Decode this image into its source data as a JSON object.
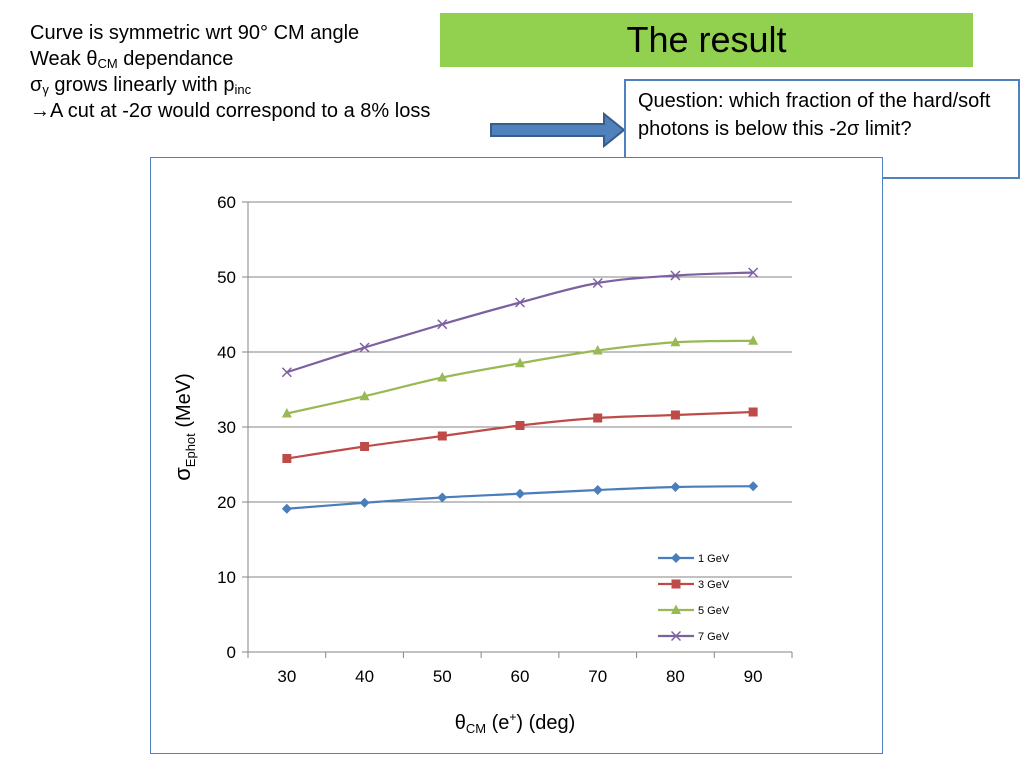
{
  "notes": {
    "line1": "Curve is symmetric wrt 90° CM angle",
    "line2_pre": "Weak ",
    "line2_theta": "θ",
    "line2_sub": "CM",
    "line2_post": " dependance",
    "line3_sigma": "σ",
    "line3_sub": "γ",
    "line3_post": " grows linearly with p",
    "line3_sub2": "inc",
    "line4_arrow": "→",
    "line4_text": "A cut at -2σ would correspond to a 8% loss"
  },
  "title": "The result",
  "question": "Question: which fraction of the hard/soft photons is below this -2σ limit?",
  "colors": {
    "title_bg": "#92d050",
    "arrow": "#4f81bd",
    "frame": "#4f81bd",
    "series": [
      "#4a7ebb",
      "#be4b48",
      "#98b954",
      "#7d60a0"
    ]
  },
  "chart_data": {
    "type": "line",
    "x": [
      30,
      40,
      50,
      60,
      70,
      80,
      90
    ],
    "xlim": [
      25,
      95
    ],
    "ylim": [
      0,
      60
    ],
    "yticks": [
      0,
      10,
      20,
      30,
      40,
      50,
      60
    ],
    "xlabel": {
      "main": "θ",
      "sub": "CM",
      "post1": " (e",
      "sup": "+",
      "post2": ")  (deg)"
    },
    "ylabel": {
      "main": "σ",
      "sub": "Ephot",
      "post": " (MeV)"
    },
    "grid": "horizontal",
    "legend": "bottom-right",
    "series": [
      {
        "name": "1 GeV",
        "marker": "diamond",
        "values": [
          19.1,
          19.9,
          20.6,
          21.1,
          21.6,
          22.0,
          22.1
        ]
      },
      {
        "name": "3 GeV",
        "marker": "square",
        "values": [
          25.8,
          27.4,
          28.8,
          30.2,
          31.2,
          31.6,
          32.0
        ]
      },
      {
        "name": "5 GeV",
        "marker": "triangle",
        "values": [
          31.8,
          34.1,
          36.6,
          38.5,
          40.2,
          41.3,
          41.5
        ]
      },
      {
        "name": "7 GeV",
        "marker": "x",
        "values": [
          37.3,
          40.6,
          43.7,
          46.6,
          49.2,
          50.2,
          50.6
        ]
      }
    ]
  }
}
